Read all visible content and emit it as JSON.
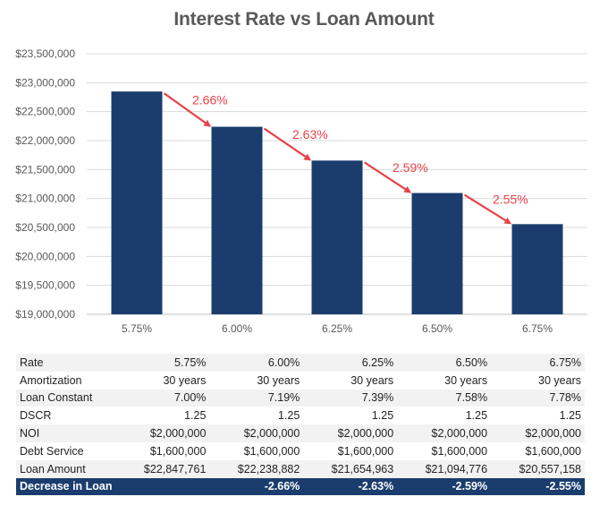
{
  "chart_data": {
    "type": "bar",
    "title": "Interest Rate vs Loan Amount",
    "xlabel": "",
    "ylabel": "",
    "categories": [
      "5.75%",
      "6.00%",
      "6.25%",
      "6.50%",
      "6.75%"
    ],
    "values": [
      22847761,
      22238882,
      21654963,
      21094776,
      20557158
    ],
    "ylim": [
      19000000,
      23500000
    ],
    "yticks": [
      "$19,000,000",
      "$19,500,000",
      "$20,000,000",
      "$20,500,000",
      "$21,000,000",
      "$21,500,000",
      "$22,000,000",
      "$22,500,000",
      "$23,000,000",
      "$23,500,000"
    ],
    "ytick_values": [
      19000000,
      19500000,
      20000000,
      20500000,
      21000000,
      21500000,
      22000000,
      22500000,
      23000000,
      23500000
    ],
    "grid": true,
    "bar_color": "#1b3d6e",
    "annotations": [
      {
        "text": "2.66%",
        "from": 0,
        "to": 1
      },
      {
        "text": "2.63%",
        "from": 1,
        "to": 2
      },
      {
        "text": "2.59%",
        "from": 2,
        "to": 3
      },
      {
        "text": "2.55%",
        "from": 3,
        "to": 4
      }
    ],
    "annotation_color": "#e8434a"
  },
  "table": {
    "rows": [
      {
        "label": "Rate",
        "values": [
          "5.75%",
          "6.00%",
          "6.25%",
          "6.50%",
          "6.75%"
        ]
      },
      {
        "label": "Amortization",
        "values": [
          "30 years",
          "30 years",
          "30 years",
          "30 years",
          "30 years"
        ]
      },
      {
        "label": "Loan Constant",
        "values": [
          "7.00%",
          "7.19%",
          "7.39%",
          "7.58%",
          "7.78%"
        ]
      },
      {
        "label": "DSCR",
        "values": [
          "1.25",
          "1.25",
          "1.25",
          "1.25",
          "1.25"
        ]
      },
      {
        "label": "NOI",
        "values": [
          "$2,000,000",
          "$2,000,000",
          "$2,000,000",
          "$2,000,000",
          "$2,000,000"
        ]
      },
      {
        "label": "Debt Service",
        "values": [
          "$1,600,000",
          "$1,600,000",
          "$1,600,000",
          "$1,600,000",
          "$1,600,000"
        ]
      },
      {
        "label": "Loan Amount",
        "values": [
          "$22,847,761",
          "$22,238,882",
          "$21,654,963",
          "$21,094,776",
          "$20,557,158"
        ]
      },
      {
        "label": "Decrease in Loan",
        "values": [
          "",
          "-2.66%",
          "-2.63%",
          "-2.59%",
          "-2.55%"
        ]
      }
    ],
    "highlight_color": "#1b3d6e"
  }
}
